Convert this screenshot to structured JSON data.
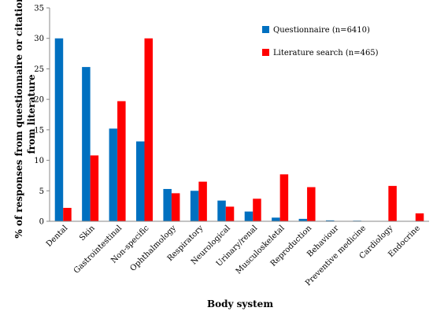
{
  "chart_data": {
    "type": "bar",
    "categories": [
      "Dental",
      "Skin",
      "Gastrointestinal",
      "Non-specific",
      "Ophthalmology",
      "Respiratory",
      "Neurological",
      "Urinary/renal",
      "Musculoskeletal",
      "Reproduction",
      "Behaviour",
      "Preventive medicine",
      "Cardiology",
      "Endocrine"
    ],
    "series": [
      {
        "name": "Questionnaire (n=6410)",
        "color": "#0070C0",
        "values": [
          30.0,
          25.3,
          15.2,
          13.1,
          5.3,
          5.0,
          3.4,
          1.6,
          0.6,
          0.4,
          0.15,
          0.1,
          0.0,
          0.0
        ]
      },
      {
        "name": "Literature search (n=465)",
        "color": "#FF0000",
        "values": [
          2.2,
          10.8,
          19.7,
          30.0,
          4.6,
          6.5,
          2.4,
          3.7,
          7.7,
          5.6,
          0.0,
          0.0,
          5.8,
          1.3
        ]
      }
    ],
    "xlabel": "Body system",
    "ylabel_line1": "% of responses from questionnaire or citations",
    "ylabel_line2": "from literature",
    "ylim": [
      0,
      35
    ],
    "yticks": [
      0,
      5,
      10,
      15,
      20,
      25,
      30,
      35
    ],
    "grid": false,
    "legend_position": "top-right"
  }
}
